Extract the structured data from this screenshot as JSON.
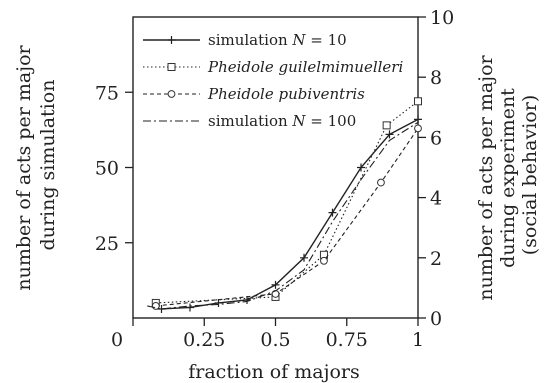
{
  "chart_data": {
    "type": "line",
    "xlabel": "fraction of majors",
    "ylabel_left": [
      "number of acts per major",
      "during simulation"
    ],
    "ylabel_right": [
      "number of acts per major",
      "during experiment",
      "(social behavior)"
    ],
    "xlim": [
      0,
      1
    ],
    "ylim_left": [
      0,
      100
    ],
    "ylim_right": [
      0,
      10
    ],
    "x_ticks": [
      {
        "value": 0,
        "label": "0"
      },
      {
        "value": 0.25,
        "label": "0.25"
      },
      {
        "value": 0.5,
        "label": "0.5"
      },
      {
        "value": 0.75,
        "label": "0.75"
      },
      {
        "value": 1,
        "label": "1"
      }
    ],
    "y_left_ticks": [
      {
        "value": 25,
        "label": "25"
      },
      {
        "value": 50,
        "label": "50"
      },
      {
        "value": 75,
        "label": "75"
      }
    ],
    "y_right_ticks": [
      {
        "value": 0,
        "label": "0"
      },
      {
        "value": 2,
        "label": "2"
      },
      {
        "value": 4,
        "label": "4"
      },
      {
        "value": 6,
        "label": "6"
      },
      {
        "value": 8,
        "label": "8"
      },
      {
        "value": 10,
        "label": "10"
      }
    ],
    "series": [
      {
        "name": "simulation N = 10",
        "name_plain": "simulation ",
        "name_var": "N",
        "name_rest": " = 10",
        "axis": "left",
        "style": "solid",
        "marker": "plus",
        "x": [
          0.1,
          0.2,
          0.3,
          0.4,
          0.5,
          0.6,
          0.7,
          0.8,
          0.9,
          1.0
        ],
        "y": [
          3,
          3.5,
          5,
          6,
          11,
          20,
          35,
          50,
          61,
          66
        ]
      },
      {
        "name": "Pheidole guilelmimuelleri",
        "axis": "right",
        "style": "dotted",
        "marker": "square",
        "x": [
          0.08,
          0.5,
          0.67,
          0.89,
          1.0
        ],
        "y": [
          0.5,
          0.7,
          2.1,
          6.4,
          7.2
        ]
      },
      {
        "name": "Pheidole pubiventris",
        "axis": "right",
        "style": "dashed",
        "marker": "circle",
        "x": [
          0.08,
          0.5,
          0.67,
          0.87,
          1.0
        ],
        "y": [
          0.4,
          0.8,
          1.9,
          4.5,
          6.3
        ]
      },
      {
        "name": "simulation N = 100",
        "name_plain": "simulation ",
        "name_var": "N",
        "name_rest": " = 100",
        "axis": "left",
        "style": "dashdot",
        "marker": "none",
        "x": [
          0.05,
          0.1,
          0.2,
          0.3,
          0.4,
          0.5,
          0.6,
          0.7,
          0.8,
          0.9,
          1.0
        ],
        "y": [
          4,
          3,
          4,
          4.5,
          5.5,
          9,
          16,
          32,
          46,
          59,
          65
        ]
      }
    ],
    "legend": "top-left",
    "grid": false
  }
}
